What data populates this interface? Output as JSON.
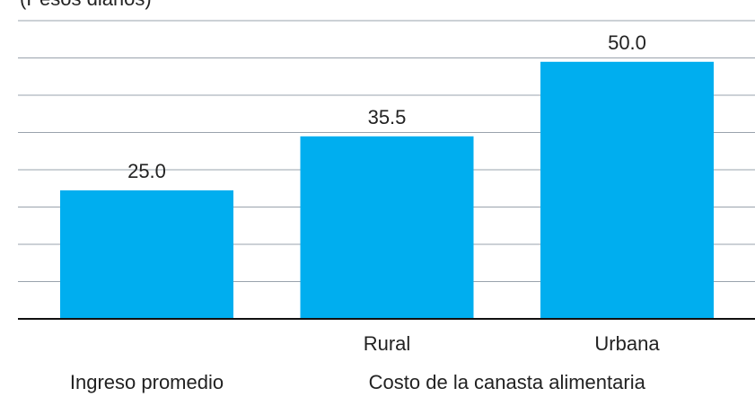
{
  "chart_data": {
    "type": "bar",
    "title": "(Pesos diarios)",
    "categories": [
      null,
      "Rural",
      "Urbana"
    ],
    "groups": [
      {
        "label": "Ingreso promedio",
        "members": [
          0
        ]
      },
      {
        "label": "Costo de la canasta alimentaria",
        "members": [
          1,
          2
        ]
      }
    ],
    "values": [
      25.0,
      35.5,
      50.0
    ],
    "value_labels": [
      "25.0",
      "35.5",
      "50.0"
    ],
    "color": "#00aeef",
    "ylim": [
      0,
      58
    ],
    "yticks": [
      0,
      7.25,
      14.5,
      21.75,
      29,
      36.25,
      43.5,
      50.75,
      58
    ],
    "grid": true
  }
}
